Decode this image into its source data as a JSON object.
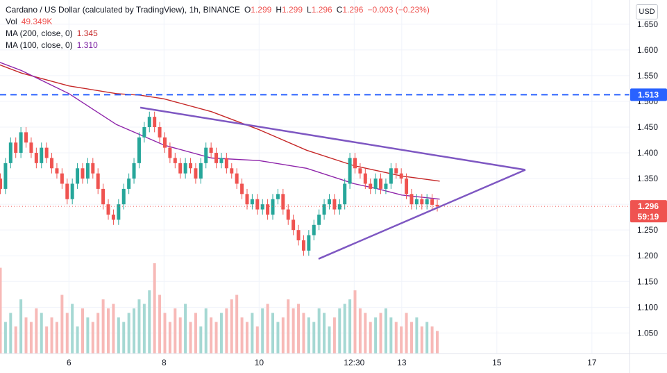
{
  "header": {
    "symbol_title": "Cardano / US Dollar (calculated by TradingView), 1h, BINANCE",
    "open_label": "O",
    "open": "1.299",
    "high_label": "H",
    "high": "1.299",
    "low_label": "L",
    "low": "1.296",
    "close_label": "C",
    "close": "1.296",
    "change": "−0.003 (−0.23%)",
    "vol_label": "Vol",
    "vol": "49.349K",
    "ma200_label": "MA (200, close, 0)",
    "ma200": "1.345",
    "ma100_label": "MA (100, close, 0)",
    "ma100": "1.310"
  },
  "currency_button": "USD",
  "colors": {
    "up": "#26a69a",
    "down": "#ef5350",
    "ma200": "#c62828",
    "ma100": "#8e24aa",
    "trendline": "#7e57c2",
    "hline": "#2962ff",
    "price_line": "#ef5350",
    "vol_up": "#a5d8d3",
    "vol_down": "#f7b9b7"
  },
  "price_badge": {
    "price": "1.296",
    "countdown": "59:19"
  },
  "hline_badge": "1.513",
  "chart_data": {
    "type": "candlestick",
    "y_ticks": [
      "1.650",
      "1.600",
      "1.550",
      "1.500",
      "1.450",
      "1.400",
      "1.350",
      "1.300",
      "1.250",
      "1.200",
      "1.150",
      "1.100",
      "1.050"
    ],
    "y_range": [
      1.01,
      1.67
    ],
    "x_ticks": [
      "6",
      "8",
      "10",
      "12:30",
      "13",
      "15",
      "17"
    ],
    "horizontal_line": 1.513,
    "current_price": 1.296,
    "ma200": [
      [
        4.0,
        1.59
      ],
      [
        5.0,
        1.555
      ],
      [
        6.0,
        1.53
      ],
      [
        7.0,
        1.515
      ],
      [
        7.5,
        1.512
      ],
      [
        8.0,
        1.505
      ],
      [
        9.0,
        1.48
      ],
      [
        10.0,
        1.445
      ],
      [
        11.0,
        1.405
      ],
      [
        12.0,
        1.375
      ],
      [
        13.0,
        1.355
      ],
      [
        13.8,
        1.345
      ]
    ],
    "ma100": [
      [
        4.0,
        1.595
      ],
      [
        5.0,
        1.56
      ],
      [
        6.0,
        1.515
      ],
      [
        7.0,
        1.455
      ],
      [
        8.0,
        1.415
      ],
      [
        9.0,
        1.39
      ],
      [
        10.0,
        1.385
      ],
      [
        11.0,
        1.37
      ],
      [
        12.0,
        1.34
      ],
      [
        12.5,
        1.33
      ],
      [
        13.0,
        1.318
      ],
      [
        13.8,
        1.31
      ]
    ],
    "trendline_upper": [
      [
        7.5,
        1.488
      ],
      [
        15.6,
        1.367
      ]
    ],
    "trendline_lower": [
      [
        11.25,
        1.194
      ],
      [
        15.6,
        1.367
      ]
    ],
    "candles": [
      [
        1.35,
        1.33
      ],
      [
        1.33,
        1.38
      ],
      [
        1.38,
        1.42
      ],
      [
        1.42,
        1.4
      ],
      [
        1.4,
        1.44
      ],
      [
        1.44,
        1.42
      ],
      [
        1.42,
        1.4
      ],
      [
        1.4,
        1.38
      ],
      [
        1.38,
        1.41
      ],
      [
        1.41,
        1.39
      ],
      [
        1.39,
        1.37
      ],
      [
        1.37,
        1.36
      ],
      [
        1.36,
        1.34
      ],
      [
        1.34,
        1.31
      ],
      [
        1.31,
        1.34
      ],
      [
        1.34,
        1.37
      ],
      [
        1.37,
        1.35
      ],
      [
        1.35,
        1.38
      ],
      [
        1.38,
        1.36
      ],
      [
        1.36,
        1.33
      ],
      [
        1.33,
        1.3
      ],
      [
        1.3,
        1.28
      ],
      [
        1.28,
        1.27
      ],
      [
        1.27,
        1.3
      ],
      [
        1.3,
        1.33
      ],
      [
        1.33,
        1.35
      ],
      [
        1.35,
        1.38
      ],
      [
        1.38,
        1.43
      ],
      [
        1.43,
        1.45
      ],
      [
        1.45,
        1.47
      ],
      [
        1.47,
        1.45
      ],
      [
        1.45,
        1.43
      ],
      [
        1.43,
        1.41
      ],
      [
        1.41,
        1.39
      ],
      [
        1.39,
        1.38
      ],
      [
        1.38,
        1.36
      ],
      [
        1.36,
        1.38
      ],
      [
        1.38,
        1.37
      ],
      [
        1.37,
        1.35
      ],
      [
        1.35,
        1.38
      ],
      [
        1.38,
        1.41
      ],
      [
        1.41,
        1.4
      ],
      [
        1.4,
        1.38
      ],
      [
        1.38,
        1.39
      ],
      [
        1.39,
        1.37
      ],
      [
        1.37,
        1.36
      ],
      [
        1.36,
        1.34
      ],
      [
        1.34,
        1.32
      ],
      [
        1.32,
        1.3
      ],
      [
        1.3,
        1.31
      ],
      [
        1.31,
        1.29
      ],
      [
        1.29,
        1.3
      ],
      [
        1.3,
        1.28
      ],
      [
        1.28,
        1.31
      ],
      [
        1.31,
        1.32
      ],
      [
        1.32,
        1.29
      ],
      [
        1.29,
        1.27
      ],
      [
        1.27,
        1.25
      ],
      [
        1.25,
        1.23
      ],
      [
        1.23,
        1.21
      ],
      [
        1.21,
        1.24
      ],
      [
        1.24,
        1.26
      ],
      [
        1.26,
        1.28
      ],
      [
        1.28,
        1.3
      ],
      [
        1.3,
        1.31
      ],
      [
        1.31,
        1.29
      ],
      [
        1.29,
        1.3
      ],
      [
        1.3,
        1.34
      ],
      [
        1.34,
        1.39
      ],
      [
        1.39,
        1.37
      ],
      [
        1.37,
        1.36
      ],
      [
        1.36,
        1.34
      ],
      [
        1.34,
        1.33
      ],
      [
        1.33,
        1.35
      ],
      [
        1.35,
        1.33
      ],
      [
        1.33,
        1.34
      ],
      [
        1.34,
        1.37
      ],
      [
        1.37,
        1.36
      ],
      [
        1.36,
        1.35
      ],
      [
        1.35,
        1.32
      ],
      [
        1.32,
        1.3
      ],
      [
        1.3,
        1.31
      ],
      [
        1.31,
        1.3
      ],
      [
        1.3,
        1.31
      ],
      [
        1.31,
        1.299
      ],
      [
        1.299,
        1.296
      ]
    ],
    "volume": [
      0.95,
      0.35,
      0.45,
      0.3,
      0.6,
      0.4,
      0.35,
      0.5,
      0.45,
      0.3,
      0.4,
      0.35,
      0.65,
      0.45,
      0.55,
      0.3,
      0.5,
      0.4,
      0.35,
      0.45,
      0.6,
      0.5,
      0.55,
      0.4,
      0.35,
      0.45,
      0.5,
      0.6,
      0.55,
      0.7,
      1.0,
      0.65,
      0.45,
      0.35,
      0.5,
      0.4,
      0.55,
      0.35,
      0.45,
      0.3,
      0.5,
      0.4,
      0.35,
      0.45,
      0.5,
      0.6,
      0.65,
      0.4,
      0.35,
      0.45,
      0.3,
      0.5,
      0.55,
      0.45,
      0.35,
      0.4,
      0.6,
      0.5,
      0.55,
      0.45,
      0.4,
      0.35,
      0.5,
      0.45,
      0.3,
      0.4,
      0.5,
      0.55,
      0.6,
      0.7,
      0.5,
      0.45,
      0.35,
      0.4,
      0.45,
      0.5,
      0.4,
      0.35,
      0.3,
      0.45,
      0.35,
      0.4,
      0.3,
      0.35,
      0.3,
      0.25
    ]
  }
}
